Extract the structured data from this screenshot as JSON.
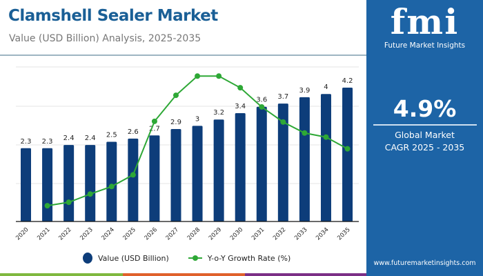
{
  "header": {
    "title": "Clamshell Sealer Market",
    "subtitle": "Value (USD Billion) Analysis, 2025-2035"
  },
  "panel": {
    "logo_text": "fmi",
    "logo_name": "Future Market Insights",
    "cagr_value": "4.9%",
    "cagr_line1": "Global Market",
    "cagr_line2": "CAGR 2025 - 2035",
    "url": "www.futuremarketinsights.com",
    "color": "#1d64a6"
  },
  "legend": {
    "bar_label": "Value (USD Billion)",
    "line_label": "Y-o-Y Growth Rate (%)"
  },
  "chart_data": {
    "type": "bar+line",
    "categories": [
      "2020",
      "2021",
      "2022",
      "2023",
      "2024",
      "2025",
      "2026",
      "2027",
      "2028",
      "2029",
      "2030",
      "2031",
      "2032",
      "2033",
      "2034",
      "2035"
    ],
    "series": [
      {
        "name": "Value (USD Billion)",
        "type": "bar",
        "color": "#0d3d7a",
        "values": [
          2.3,
          2.3,
          2.4,
          2.4,
          2.5,
          2.6,
          2.7,
          2.9,
          3,
          3.2,
          3.4,
          3.6,
          3.7,
          3.9,
          4,
          4.2
        ],
        "labels": [
          "2.3",
          "2.3",
          "2.4",
          "2.4",
          "2.5",
          "2.6",
          "2.7",
          "2.9",
          "3",
          "3.2",
          "3.4",
          "3.6",
          "3.7",
          "3.9",
          "4",
          "4.2"
        ]
      },
      {
        "name": "Y-o-Y Growth Rate (%)",
        "type": "line",
        "color": "#2ea836",
        "values": [
          null,
          1.15,
          1.4,
          2.0,
          2.55,
          3.4,
          7.3,
          9.2,
          10.6,
          10.6,
          9.75,
          8.35,
          7.25,
          6.45,
          6.15,
          5.3
        ]
      }
    ],
    "ylim": [
      0,
      5.2
    ],
    "y2lim": [
      0,
      11.5
    ],
    "grid": true,
    "legend_position": "bottom"
  },
  "strip_colors": [
    "#7fb83f",
    "#e0612b",
    "#7b2f86"
  ]
}
